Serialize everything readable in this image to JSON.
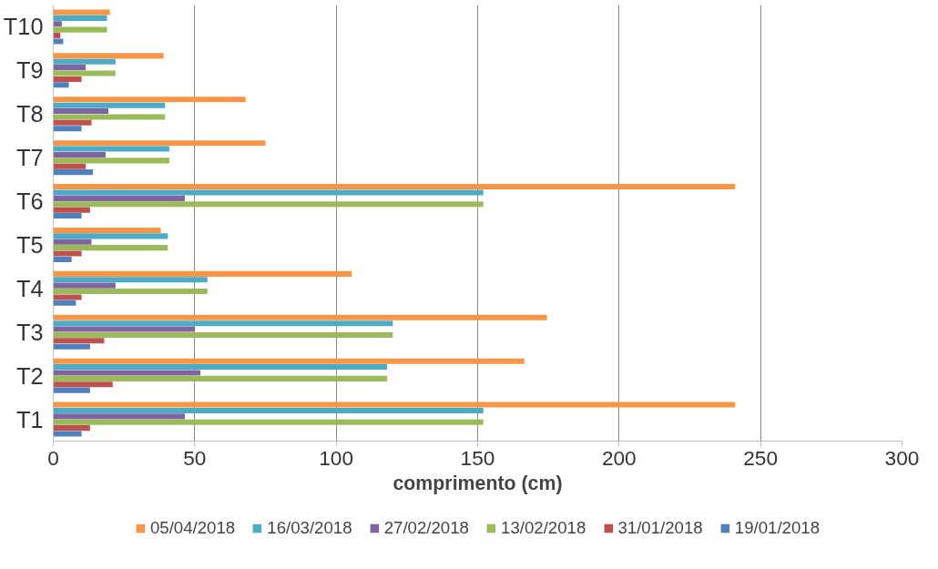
{
  "chart_data": {
    "type": "bar",
    "orientation": "horizontal",
    "categories": [
      "T10",
      "T9",
      "T8",
      "T7",
      "T6",
      "T5",
      "T4",
      "T3",
      "T2",
      "T1"
    ],
    "xlabel": "comprimento (cm)",
    "xlim": [
      0,
      300
    ],
    "xticks": [
      0,
      50,
      100,
      150,
      200,
      250,
      300
    ],
    "grid": "x",
    "legend": "bottom",
    "series": [
      {
        "name": "05/04/2018",
        "color": "#f79646",
        "values": [
          20,
          39,
          68,
          75,
          241,
          38,
          105.5,
          174.5,
          166.5,
          241
        ]
      },
      {
        "name": "16/03/2018",
        "color": "#4bacc6",
        "values": [
          19,
          22,
          39.5,
          41,
          152,
          40.5,
          54.5,
          120,
          118,
          152
        ]
      },
      {
        "name": "27/02/2018",
        "color": "#8064a2",
        "values": [
          3,
          11.5,
          19.5,
          18.5,
          46.5,
          13.5,
          22,
          50,
          52,
          46.5
        ]
      },
      {
        "name": "13/02/2018",
        "color": "#9bbb59",
        "values": [
          19,
          22,
          39.5,
          41,
          152,
          40.5,
          54.5,
          120,
          118,
          152
        ]
      },
      {
        "name": "31/01/2018",
        "color": "#c0504d",
        "values": [
          2.5,
          10,
          13.5,
          11.5,
          13,
          10,
          10,
          18,
          21,
          13
        ]
      },
      {
        "name": "19/01/2018",
        "color": "#4f81bd",
        "values": [
          3.5,
          5.5,
          10,
          14,
          10,
          6.5,
          8,
          13,
          13,
          10
        ]
      }
    ]
  }
}
